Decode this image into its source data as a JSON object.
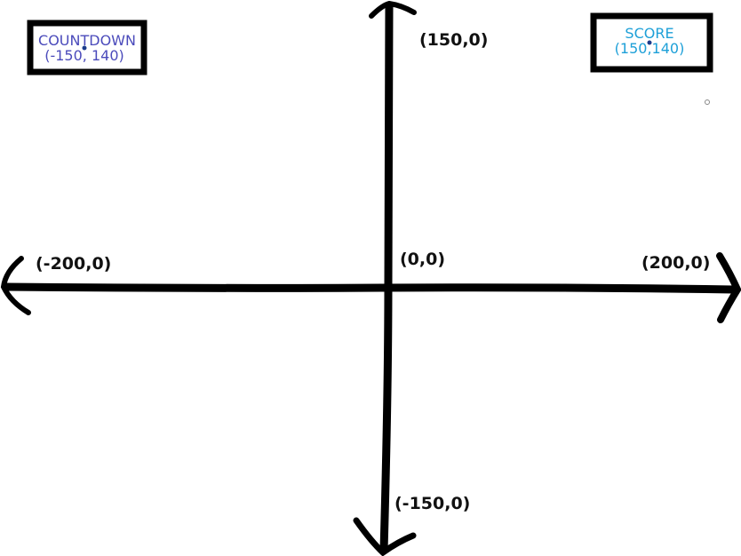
{
  "colors": {
    "ink": "#000000",
    "countdown_text": "#4b4bbb",
    "score_text": "#1ea0d8",
    "dot": "#1b3c8c",
    "background": "#ffffff"
  },
  "axes": {
    "top_label": "(150,0)",
    "bottom_label": "(-150,0)",
    "left_label": "(-200,0)",
    "right_label": "(200,0)",
    "origin_label": "(0,0)"
  },
  "countdown_box": {
    "title": "COUNTDOWN",
    "coords": "(-150, 140)"
  },
  "score_box": {
    "title": "SCORE",
    "coords": "(150,140)"
  }
}
